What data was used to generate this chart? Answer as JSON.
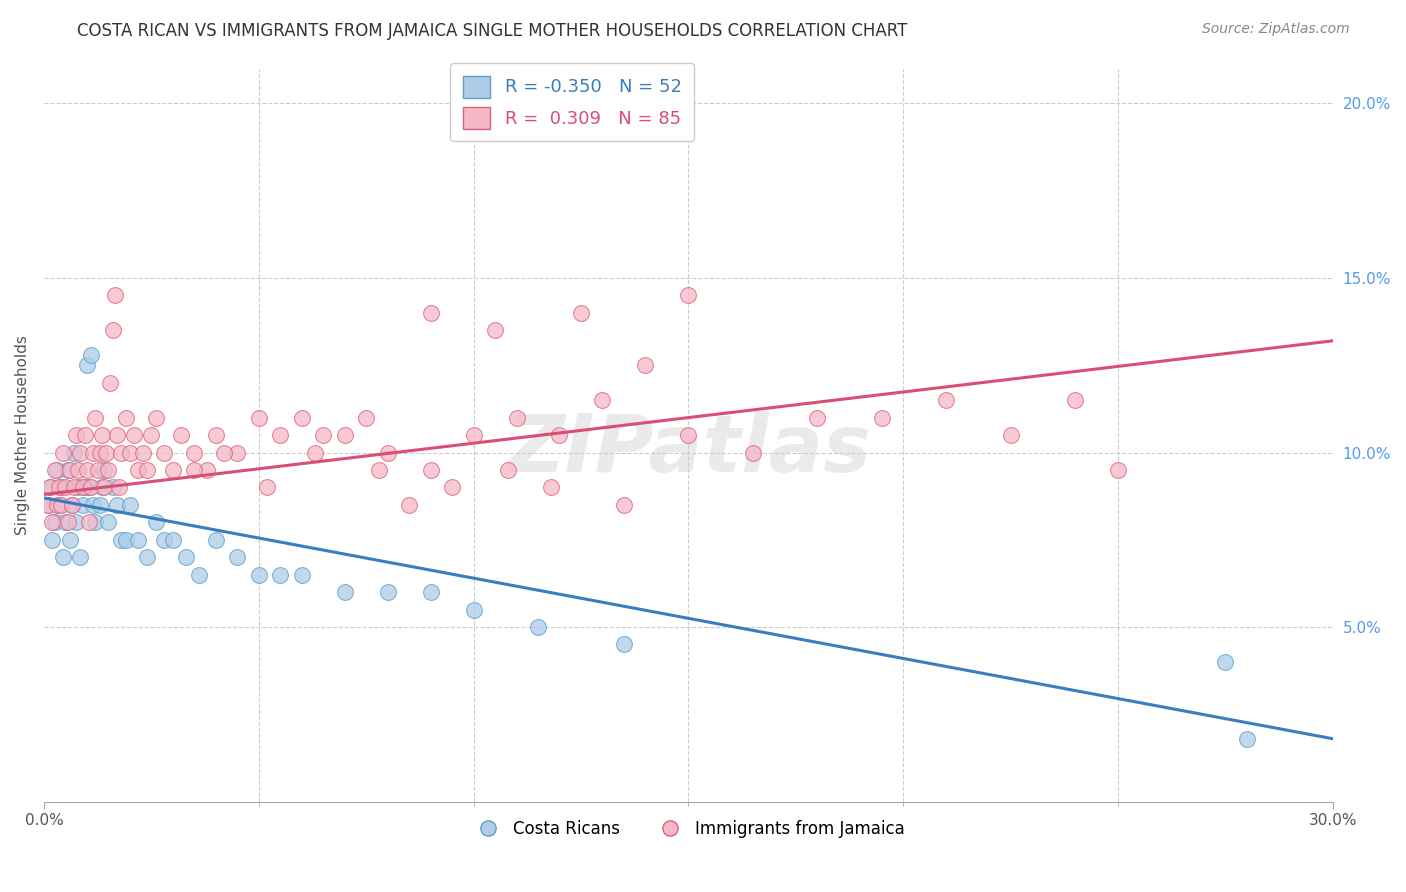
{
  "title": "COSTA RICAN VS IMMIGRANTS FROM JAMAICA SINGLE MOTHER HOUSEHOLDS CORRELATION CHART",
  "source": "Source: ZipAtlas.com",
  "ylabel": "Single Mother Households",
  "xlim": [
    0,
    30
  ],
  "ylim": [
    0,
    21
  ],
  "xtick_positions": [
    0,
    30
  ],
  "xtick_labels": [
    "0.0%",
    "30.0%"
  ],
  "xtick_minor_positions": [
    5,
    10,
    15,
    20,
    25
  ],
  "yticks_right": [
    5,
    10,
    15,
    20
  ],
  "ytick_labels_right": [
    "5.0%",
    "10.0%",
    "15.0%",
    "20.0%"
  ],
  "watermark": "ZIPatlas",
  "series": [
    {
      "name": "Costa Ricans",
      "color": "#aecde8",
      "edge_color": "#5a9fc9",
      "R": -0.35,
      "N": 52,
      "trend_color": "#3a7dbf",
      "x": [
        0.1,
        0.15,
        0.2,
        0.25,
        0.3,
        0.35,
        0.4,
        0.45,
        0.5,
        0.55,
        0.6,
        0.65,
        0.7,
        0.75,
        0.8,
        0.85,
        0.9,
        0.95,
        1.0,
        1.05,
        1.1,
        1.15,
        1.2,
        1.3,
        1.35,
        1.4,
        1.5,
        1.6,
        1.7,
        1.8,
        1.9,
        2.0,
        2.2,
        2.4,
        2.6,
        2.8,
        3.0,
        3.3,
        3.6,
        4.0,
        4.5,
        5.0,
        5.5,
        6.0,
        7.0,
        8.0,
        9.0,
        10.0,
        11.5,
        13.5,
        27.5,
        28.0
      ],
      "y": [
        8.5,
        9.0,
        7.5,
        8.0,
        9.5,
        8.5,
        9.0,
        7.0,
        8.0,
        9.5,
        7.5,
        8.5,
        10.0,
        8.0,
        9.0,
        7.0,
        8.5,
        9.0,
        12.5,
        9.0,
        12.8,
        8.5,
        8.0,
        8.5,
        9.0,
        9.5,
        8.0,
        9.0,
        8.5,
        7.5,
        7.5,
        8.5,
        7.5,
        7.0,
        8.0,
        7.5,
        7.5,
        7.0,
        6.5,
        7.5,
        7.0,
        6.5,
        6.5,
        6.5,
        6.0,
        6.0,
        6.0,
        5.5,
        5.0,
        4.5,
        4.0,
        1.8
      ],
      "trend_x": [
        0,
        30
      ],
      "trend_y": [
        8.7,
        1.8
      ]
    },
    {
      "name": "Immigrants from Jamaica",
      "color": "#f4b8c8",
      "edge_color": "#e0607a",
      "R": 0.309,
      "N": 85,
      "trend_color": "#d94f72",
      "x": [
        0.1,
        0.15,
        0.2,
        0.25,
        0.3,
        0.35,
        0.4,
        0.45,
        0.5,
        0.55,
        0.6,
        0.65,
        0.7,
        0.75,
        0.8,
        0.85,
        0.9,
        0.95,
        1.0,
        1.05,
        1.1,
        1.15,
        1.2,
        1.25,
        1.3,
        1.35,
        1.4,
        1.45,
        1.5,
        1.55,
        1.6,
        1.65,
        1.7,
        1.75,
        1.8,
        1.9,
        2.0,
        2.1,
        2.2,
        2.3,
        2.4,
        2.5,
        2.6,
        2.8,
        3.0,
        3.2,
        3.5,
        3.8,
        4.0,
        4.5,
        5.0,
        5.5,
        6.0,
        6.5,
        7.0,
        7.5,
        8.0,
        9.0,
        10.0,
        11.0,
        12.0,
        13.0,
        14.0,
        15.0,
        16.5,
        18.0,
        19.5,
        21.0,
        22.5,
        24.0,
        25.0,
        9.0,
        10.5,
        12.5,
        15.0,
        3.5,
        4.2,
        5.2,
        6.3,
        7.8,
        8.5,
        9.5,
        10.8,
        11.8,
        13.5
      ],
      "y": [
        8.5,
        9.0,
        8.0,
        9.5,
        8.5,
        9.0,
        8.5,
        10.0,
        9.0,
        8.0,
        9.5,
        8.5,
        9.0,
        10.5,
        9.5,
        10.0,
        9.0,
        10.5,
        9.5,
        8.0,
        9.0,
        10.0,
        11.0,
        9.5,
        10.0,
        10.5,
        9.0,
        10.0,
        9.5,
        12.0,
        13.5,
        14.5,
        10.5,
        9.0,
        10.0,
        11.0,
        10.0,
        10.5,
        9.5,
        10.0,
        9.5,
        10.5,
        11.0,
        10.0,
        9.5,
        10.5,
        10.0,
        9.5,
        10.5,
        10.0,
        11.0,
        10.5,
        11.0,
        10.5,
        10.5,
        11.0,
        10.0,
        9.5,
        10.5,
        11.0,
        10.5,
        11.5,
        12.5,
        10.5,
        10.0,
        11.0,
        11.0,
        11.5,
        10.5,
        11.5,
        9.5,
        14.0,
        13.5,
        14.0,
        14.5,
        9.5,
        10.0,
        9.0,
        10.0,
        9.5,
        8.5,
        9.0,
        9.5,
        9.0,
        8.5
      ],
      "trend_x": [
        0,
        30
      ],
      "trend_y": [
        8.8,
        13.2
      ]
    }
  ],
  "title_fontsize": 12,
  "source_fontsize": 10,
  "label_fontsize": 11,
  "tick_fontsize": 11,
  "background_color": "#ffffff",
  "grid_color": "#cccccc"
}
